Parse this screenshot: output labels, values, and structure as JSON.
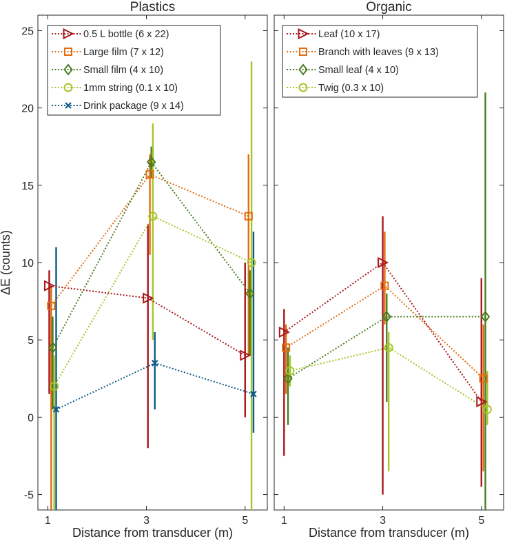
{
  "chart_data": [
    {
      "type": "line",
      "title": "Plastics",
      "xlabel": "Distance from transducer (m)",
      "ylabel": "ΔE (counts)",
      "xlim": [
        0.8,
        5.45
      ],
      "ylim": [
        -6,
        26
      ],
      "xticks": [
        1,
        3,
        5
      ],
      "yticks": [
        -5,
        0,
        5,
        10,
        15,
        20,
        25
      ],
      "legend_position": "top-left",
      "series": [
        {
          "name": "0.5 L bottle",
          "size": "(6 x 22)",
          "color": "#a8161a",
          "marker": "triangle-right",
          "x": [
            1.03,
            3.03,
            5.0
          ],
          "y": [
            8.5,
            7.7,
            4.0
          ],
          "err_low": [
            1.5,
            -2.0,
            0.0
          ],
          "err_high": [
            9.5,
            12.5,
            10.0
          ]
        },
        {
          "name": "Large film",
          "size": "(7 x 12)",
          "color": "#e16d10",
          "marker": "square",
          "x": [
            1.07,
            3.07,
            5.07
          ],
          "y": [
            7.2,
            15.7,
            13.0
          ],
          "err_low": [
            -6.0,
            10.5,
            4.0
          ],
          "err_high": [
            8.5,
            17.0,
            17.0
          ]
        },
        {
          "name": "Small film",
          "size": "(4 x 10)",
          "color": "#4a7d1f",
          "marker": "diamond",
          "x": [
            1.1,
            3.1,
            5.1
          ],
          "y": [
            4.5,
            16.5,
            8.0
          ],
          "err_low": [
            0.5,
            15.5,
            4.0
          ],
          "err_high": [
            6.5,
            17.5,
            9.5
          ]
        },
        {
          "name": "1mm string",
          "size": "(0.1 x 10)",
          "color": "#a4c52a",
          "marker": "circle",
          "x": [
            1.13,
            3.13,
            5.13
          ],
          "y": [
            2.0,
            13.0,
            10.0
          ],
          "err_low": [
            -6.0,
            5.0,
            -6.0
          ],
          "err_high": [
            4.0,
            19.0,
            23.0
          ]
        },
        {
          "name": "Drink package",
          "size": "(9 x 14)",
          "color": "#0e5a86",
          "marker": "x",
          "x": [
            1.17,
            3.17,
            5.17
          ],
          "y": [
            0.5,
            3.5,
            1.5
          ],
          "err_low": [
            -6.0,
            0.5,
            -1.0
          ],
          "err_high": [
            11.0,
            5.5,
            12.0
          ]
        }
      ]
    },
    {
      "type": "line",
      "title": "Organic",
      "xlabel": "Distance from transducer (m)",
      "ylabel": "",
      "xlim": [
        0.8,
        5.45
      ],
      "ylim": [
        -6,
        26
      ],
      "xticks": [
        1,
        3,
        5
      ],
      "yticks": [
        -5,
        0,
        5,
        10,
        15,
        20,
        25
      ],
      "legend_position": "top-left",
      "series": [
        {
          "name": "Leaf",
          "size": "(10 x 17)",
          "color": "#a8161a",
          "marker": "triangle-right",
          "x": [
            1.0,
            3.0,
            5.0
          ],
          "y": [
            5.5,
            10.0,
            1.0
          ],
          "err_low": [
            -2.5,
            -5.0,
            -4.5
          ],
          "err_high": [
            7.0,
            13.0,
            9.0
          ]
        },
        {
          "name": "Branch with leaves",
          "size": "(9 x 13)",
          "color": "#e16d10",
          "marker": "square",
          "x": [
            1.04,
            3.04,
            5.04
          ],
          "y": [
            4.5,
            8.5,
            2.5
          ],
          "err_low": [
            1.5,
            6.0,
            -3.5
          ],
          "err_high": [
            6.0,
            12.0,
            6.0
          ]
        },
        {
          "name": "Small leaf",
          "size": "(4 x 10)",
          "color": "#4a7d1f",
          "marker": "diamond",
          "x": [
            1.08,
            3.08,
            5.08
          ],
          "y": [
            2.5,
            6.5,
            6.5
          ],
          "err_low": [
            -0.5,
            1.0,
            -6.0
          ],
          "err_high": [
            4.5,
            8.0,
            21.0
          ]
        },
        {
          "name": "Twig",
          "size": "(0.3 x 10)",
          "color": "#a4c52a",
          "marker": "circle",
          "x": [
            1.12,
            3.12,
            5.12
          ],
          "y": [
            3.0,
            4.5,
            0.5
          ],
          "err_low": [
            2.0,
            -3.5,
            -0.5
          ],
          "err_high": [
            4.0,
            5.5,
            3.0
          ]
        }
      ]
    }
  ]
}
